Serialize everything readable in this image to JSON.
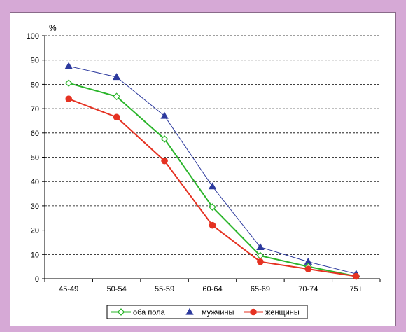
{
  "chart_data": {
    "type": "line",
    "y_unit": "%",
    "categories": [
      "45-49",
      "50-54",
      "55-59",
      "60-64",
      "65-69",
      "70-74",
      "75+"
    ],
    "ylim": [
      0,
      100
    ],
    "yticks": [
      0,
      10,
      20,
      30,
      40,
      50,
      60,
      70,
      80,
      90,
      100
    ],
    "grid": true,
    "legend_position": "bottom",
    "series": [
      {
        "name": "оба пола",
        "color": "#2bb52b",
        "marker": "diamond-open",
        "values": [
          80.5,
          75,
          57.5,
          29.5,
          9.5,
          5,
          1
        ]
      },
      {
        "name": "мужчины",
        "color": "#2d3a9e",
        "marker": "triangle",
        "values": [
          87.5,
          83,
          67,
          38,
          13,
          7,
          2
        ]
      },
      {
        "name": "женщины",
        "color": "#e53222",
        "marker": "circle",
        "values": [
          74,
          66.5,
          48.5,
          22,
          7,
          4,
          1
        ]
      }
    ]
  }
}
